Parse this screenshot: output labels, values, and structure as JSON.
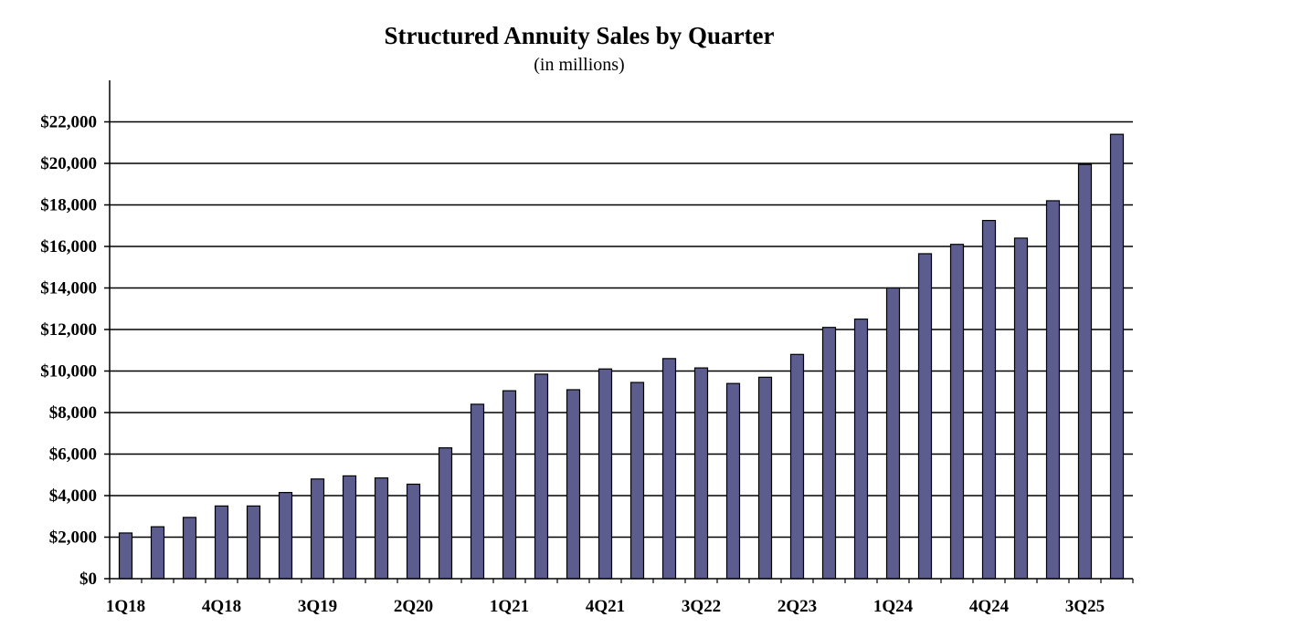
{
  "chart_data": {
    "type": "bar",
    "title": "Structured Annuity Sales by Quarter",
    "subtitle": "(in millions)",
    "xlabel": "",
    "ylabel": "",
    "ylim": [
      0,
      24000
    ],
    "yticks": [
      0,
      2000,
      4000,
      6000,
      8000,
      10000,
      12000,
      14000,
      16000,
      18000,
      20000,
      22000
    ],
    "ytick_labels": [
      "$0",
      "$2,000",
      "$4,000",
      "$6,000",
      "$8,000",
      "$10,000",
      "$12,000",
      "$14,000",
      "$16,000",
      "$18,000",
      "$20,000",
      "$22,000"
    ],
    "grid": true,
    "categories": [
      "1Q18",
      "2Q18",
      "3Q18",
      "4Q18",
      "1Q19",
      "2Q19",
      "3Q19",
      "4Q19",
      "1Q20",
      "2Q20",
      "3Q20",
      "4Q20",
      "1Q21",
      "2Q21",
      "3Q21",
      "4Q21",
      "1Q22",
      "2Q22",
      "3Q22",
      "4Q22",
      "1Q23",
      "2Q23",
      "3Q23",
      "4Q23",
      "1Q24",
      "2Q24",
      "3Q24",
      "4Q24",
      "1Q25",
      "2Q25",
      "3Q25",
      "4Q25"
    ],
    "xtick_labels_shown": [
      "1Q18",
      "4Q18",
      "3Q19",
      "2Q20",
      "1Q21",
      "4Q21",
      "3Q22",
      "2Q23",
      "1Q24",
      "4Q24",
      "3Q25"
    ],
    "values": [
      2200,
      2500,
      2950,
      3500,
      3500,
      4150,
      4800,
      4950,
      4850,
      4550,
      6300,
      8400,
      9050,
      9850,
      9100,
      10100,
      9450,
      10600,
      10150,
      9400,
      9700,
      10800,
      12100,
      12500,
      14000,
      15650,
      16100,
      17250,
      16400,
      18200,
      19950,
      21400
    ],
    "colors": {
      "bar": "#5c5c8e",
      "bar_stroke": "#000000",
      "grid": "#000000"
    }
  }
}
